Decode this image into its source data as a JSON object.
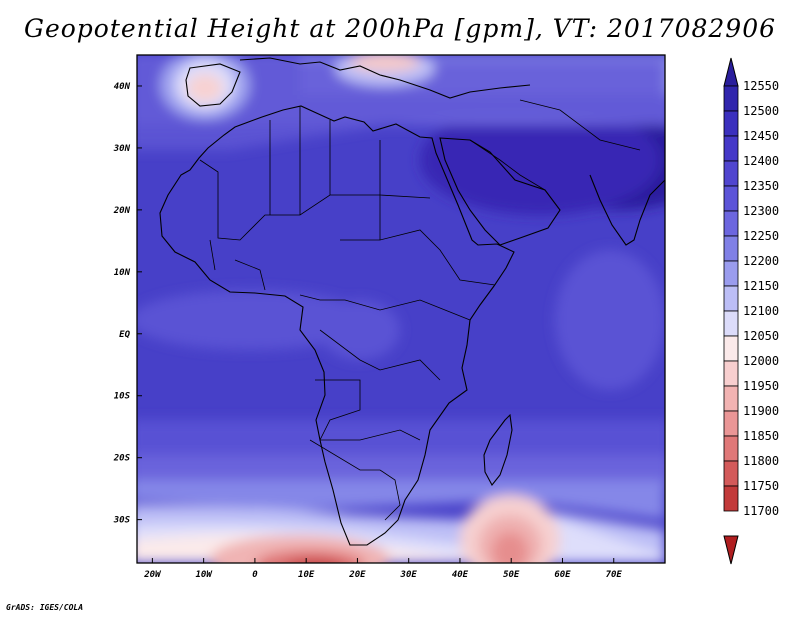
{
  "title": "Geopotential Height at 200hPa [gpm], VT: 2017082906",
  "credit": "GrADS: IGES/COLA",
  "map": {
    "lon_range": [
      -23,
      80
    ],
    "lat_range": [
      -37,
      45
    ],
    "lon_ticks": [
      {
        "value": -20,
        "label": "20W"
      },
      {
        "value": -10,
        "label": "10W"
      },
      {
        "value": 0,
        "label": "0"
      },
      {
        "value": 10,
        "label": "10E"
      },
      {
        "value": 20,
        "label": "20E"
      },
      {
        "value": 30,
        "label": "30E"
      },
      {
        "value": 40,
        "label": "40E"
      },
      {
        "value": 50,
        "label": "50E"
      },
      {
        "value": 60,
        "label": "60E"
      },
      {
        "value": 70,
        "label": "70E"
      }
    ],
    "lat_ticks": [
      {
        "value": 40,
        "label": "40N"
      },
      {
        "value": 30,
        "label": "30N"
      },
      {
        "value": 20,
        "label": "20N"
      },
      {
        "value": 10,
        "label": "10N"
      },
      {
        "value": 0,
        "label": "EQ"
      },
      {
        "value": -10,
        "label": "10S"
      },
      {
        "value": -20,
        "label": "20S"
      },
      {
        "value": -30,
        "label": "30S"
      }
    ]
  },
  "colorbar": {
    "levels": [
      12550,
      12500,
      12450,
      12400,
      12350,
      12300,
      12250,
      12200,
      12150,
      12100,
      12050,
      12000,
      11950,
      11900,
      11850,
      11800,
      11750,
      11700
    ],
    "colors": [
      "#2a1e9c",
      "#3126ad",
      "#3b30be",
      "#4538c8",
      "#5045cf",
      "#5c54d8",
      "#6c66df",
      "#8080e6",
      "#9a9cee",
      "#bcbef6",
      "#dcdcfa",
      "#fbeaea",
      "#f8cfcf",
      "#f2b3b2",
      "#ea9696",
      "#e07878",
      "#d35a5a",
      "#c23a3a",
      "#b01e20"
    ]
  }
}
